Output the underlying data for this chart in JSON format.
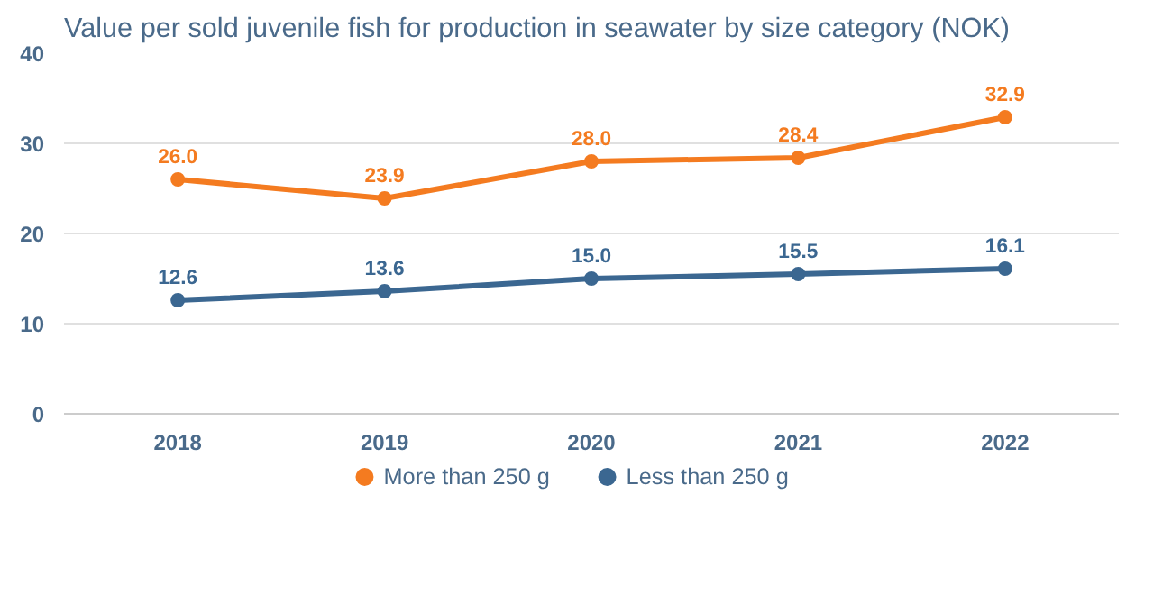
{
  "chart_data": {
    "type": "line",
    "title": "Value per sold juvenile fish for production in seawater by size category (NOK)",
    "categories": [
      "2018",
      "2019",
      "2020",
      "2021",
      "2022"
    ],
    "series": [
      {
        "name": "More than 250 g",
        "color": "#f47b20",
        "values": [
          26.0,
          23.9,
          28.0,
          28.4,
          32.9
        ],
        "value_labels": [
          "26.0",
          "23.9",
          "28.0",
          "28.4",
          "32.9"
        ]
      },
      {
        "name": "Less than 250 g",
        "color": "#3b6791",
        "values": [
          12.6,
          13.6,
          15.0,
          15.5,
          16.1
        ],
        "value_labels": [
          "12.6",
          "13.6",
          "15.0",
          "15.5",
          "16.1"
        ]
      }
    ],
    "ylim": [
      0,
      40
    ],
    "yticks": [
      0,
      10,
      20,
      30,
      40
    ],
    "grid": "y",
    "legend": "bottom",
    "marker": "circle",
    "line_style": "solid"
  }
}
